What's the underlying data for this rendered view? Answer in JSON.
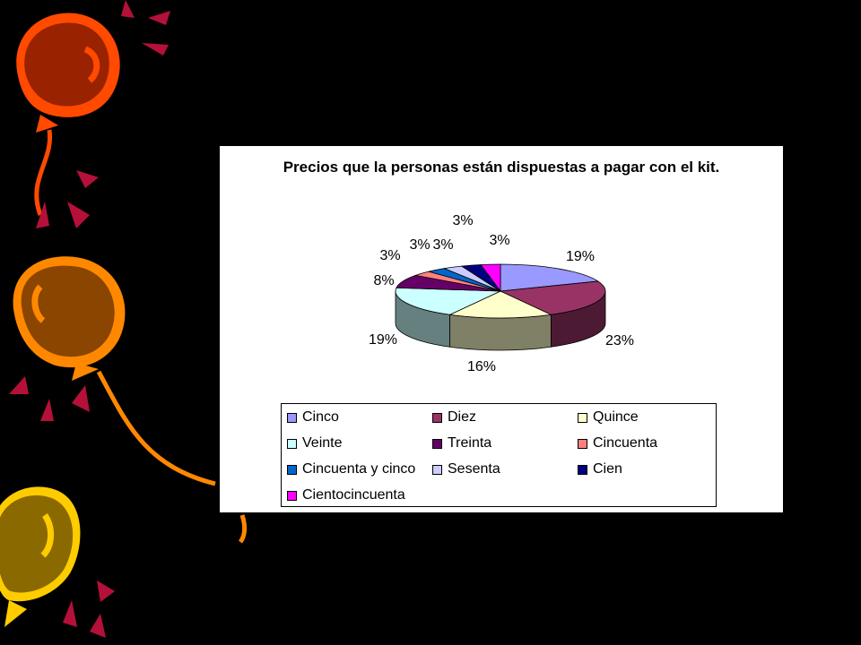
{
  "chart_data": {
    "type": "pie",
    "title": "Precios que la personas están dispuestas a pagar con el kit.",
    "legend_position": "bottom",
    "categories": [
      "Cinco",
      "Diez",
      "Quince",
      "Veinte",
      "Treinta",
      "Cincuenta",
      "Cincuenta y cinco",
      "Sesenta",
      "Cien",
      "Cientocincuenta"
    ],
    "values": [
      19,
      23,
      16,
      19,
      8,
      3,
      3,
      3,
      3,
      3
    ],
    "labels": [
      "19%",
      "23%",
      "16%",
      "19%",
      "8%",
      "3%",
      "3%",
      "3%",
      "3%",
      "3%"
    ],
    "colors": [
      "#9999ff",
      "#993366",
      "#ffffcc",
      "#ccffff",
      "#660066",
      "#ff8080",
      "#0066cc",
      "#ccccff",
      "#000080",
      "#ff00ff"
    ]
  },
  "decor": {
    "balloon_colors": [
      "#cc2200",
      "#ff6600",
      "#ffaa00"
    ]
  }
}
